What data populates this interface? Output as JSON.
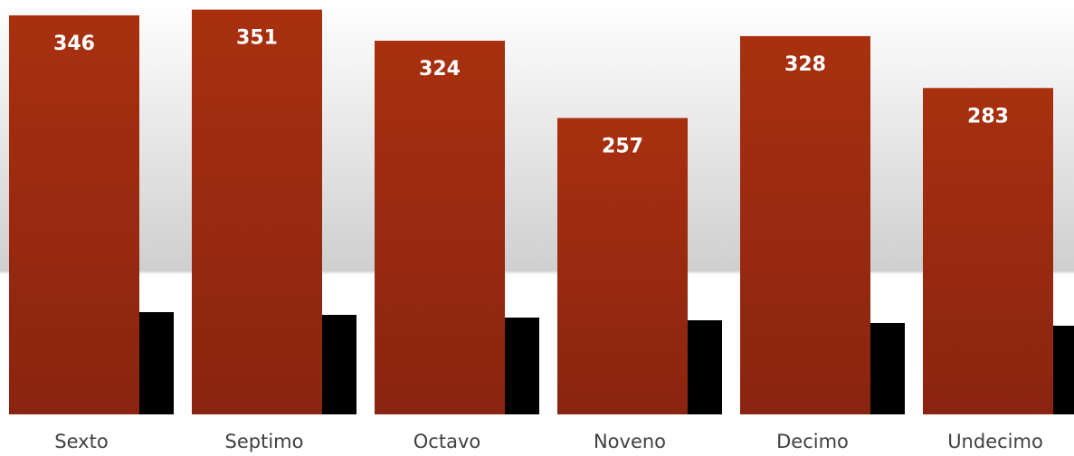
{
  "chart_data": {
    "type": "bar",
    "categories": [
      "Sexto",
      "Septimo",
      "Octavo",
      "Noveno",
      "Decimo",
      "Undecimo"
    ],
    "values": [
      346,
      351,
      324,
      257,
      328,
      283
    ],
    "data_labels": [
      "346",
      "351",
      "324",
      "257",
      "328",
      "283"
    ],
    "title": "",
    "xlabel": "",
    "ylabel": "",
    "ylim": [
      0,
      360
    ],
    "grid": false,
    "legend": "none",
    "bar_color_top": "#a52f0f",
    "bar_color_bottom": "#8b2410",
    "background_top": "#ffffff",
    "background_bottom": "#c9c9c9"
  }
}
